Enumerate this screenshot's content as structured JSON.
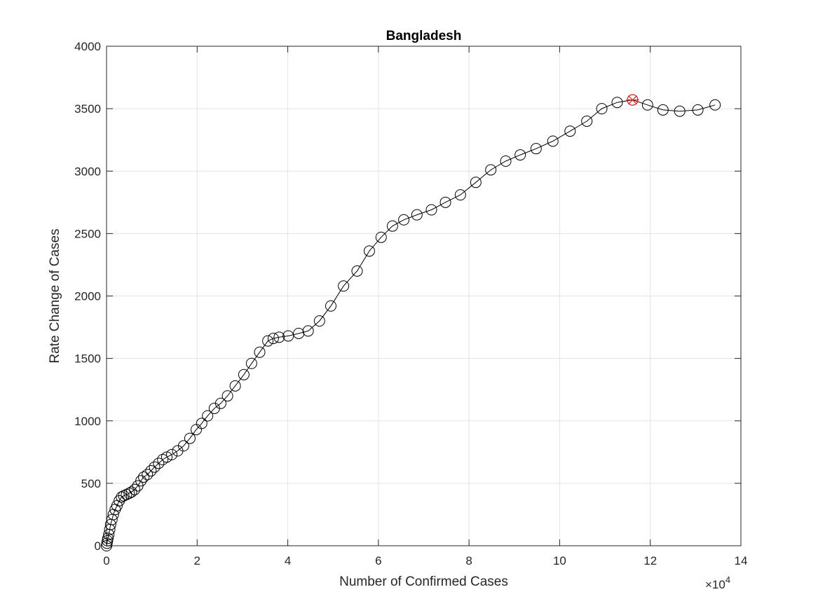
{
  "chart_data": {
    "type": "line",
    "title": "Bangladesh",
    "xlabel": "Number of Confirmed Cases",
    "ylabel": "Rate Change of Cases",
    "x_exponent_label": "×10",
    "x_exponent_power": "4",
    "x_scale": 10000,
    "xlim": [
      0,
      140000
    ],
    "ylim": [
      0,
      4000
    ],
    "x_ticks": [
      0,
      20000,
      40000,
      60000,
      80000,
      100000,
      120000,
      140000
    ],
    "x_tick_labels": [
      "0",
      "2",
      "4",
      "6",
      "8",
      "10",
      "12",
      "14"
    ],
    "y_ticks": [
      0,
      500,
      1000,
      1500,
      2000,
      2500,
      3000,
      3500,
      4000
    ],
    "y_tick_labels": [
      "0",
      "500",
      "1000",
      "1500",
      "2000",
      "2500",
      "3000",
      "3500",
      "4000"
    ],
    "grid": true,
    "line_color": "#000000",
    "marker": "circle",
    "peak_color": "#d62728",
    "series": [
      {
        "x": [
          0,
          100,
          200,
          300,
          500,
          700,
          900,
          1200,
          1500,
          1900,
          2300,
          2800,
          3300,
          3800,
          4400,
          5000,
          5500,
          6200,
          6900,
          7600,
          8200,
          9000,
          9800,
          10600,
          11500,
          12400,
          13300,
          14400,
          15700,
          17000,
          18400,
          19800,
          21000,
          22300,
          23800,
          25200,
          26700,
          28400,
          30300,
          32000,
          33800,
          35600,
          36800,
          38100,
          40100,
          42400,
          44500,
          47000,
          49500,
          52300,
          55300,
          58000,
          60600,
          63100,
          65600,
          68500,
          71700,
          74800,
          78100,
          81500,
          84800,
          88100,
          91300,
          94800,
          98500,
          102300,
          106000,
          109300,
          112700,
          116100,
          119400,
          122800,
          126500,
          130500,
          134300
        ],
        "y": [
          0,
          20,
          40,
          60,
          90,
          130,
          170,
          210,
          250,
          290,
          320,
          360,
          390,
          400,
          410,
          420,
          430,
          450,
          480,
          520,
          550,
          570,
          600,
          630,
          660,
          690,
          710,
          730,
          760,
          800,
          860,
          930,
          980,
          1040,
          1100,
          1140,
          1200,
          1280,
          1370,
          1460,
          1550,
          1640,
          1660,
          1670,
          1680,
          1700,
          1720,
          1800,
          1920,
          2080,
          2200,
          2360,
          2470,
          2560,
          2610,
          2650,
          2690,
          2750,
          2810,
          2910,
          3010,
          3080,
          3130,
          3180,
          3240,
          3320,
          3400,
          3500,
          3550,
          3570,
          3530,
          3490,
          3480,
          3490,
          3530
        ]
      }
    ],
    "peak": {
      "x": 116100,
      "y": 3570
    }
  }
}
